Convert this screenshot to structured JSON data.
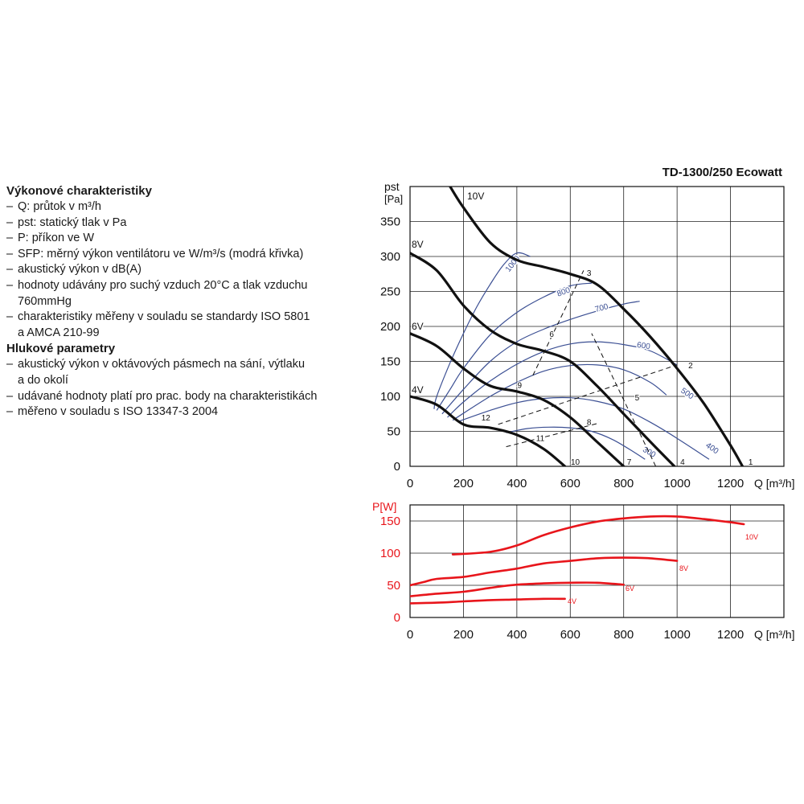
{
  "info": {
    "section1_title": "Výkonové charakteristiky",
    "section1_items": [
      [
        "Q: průtok v m³/h"
      ],
      [
        "pst: statický tlak v Pa"
      ],
      [
        "P: příkon ve W"
      ],
      [
        "SFP: měrný výkon ventilátoru ve W/m³/s (modrá křivka)"
      ],
      [
        "akustický výkon v dB(A)"
      ],
      [
        "hodnoty udávány pro suchý vzduch 20°C a tlak vzduchu",
        "760mmHg"
      ],
      [
        "charakteristiky měřeny v souladu se standardy ISO 5801",
        "a AMCA 210-99"
      ]
    ],
    "section2_title": "Hlukové parametry",
    "section2_items": [
      [
        "akustický výkon v oktávových pásmech na sání, výtlaku",
        "a do okolí"
      ],
      [
        "udávané hodnoty platí pro prac. body na charakteristikách"
      ],
      [
        "měřeno v souladu s ISO 13347-3 2004"
      ]
    ]
  },
  "chart_data": [
    {
      "type": "line",
      "title": "TD-1300/250 Ecowatt",
      "ylabel_main": "pst",
      "ylabel_unit": "[Pa]",
      "xlabel": "Q [m³/h]",
      "xlim": [
        0,
        1400
      ],
      "ylim": [
        0,
        400
      ],
      "xticks": [
        0,
        200,
        400,
        600,
        800,
        1000,
        1200
      ],
      "yticks": [
        0,
        50,
        100,
        150,
        200,
        250,
        300,
        350
      ],
      "grid": true,
      "series": [
        {
          "name": "10V",
          "points": [
            [
              150,
              400
            ],
            [
              200,
              370
            ],
            [
              300,
              320
            ],
            [
              400,
              295
            ],
            [
              500,
              285
            ],
            [
              600,
              275
            ],
            [
              700,
              260
            ],
            [
              800,
              225
            ],
            [
              900,
              185
            ],
            [
              1000,
              140
            ],
            [
              1100,
              90
            ],
            [
              1200,
              30
            ],
            [
              1245,
              0
            ]
          ]
        },
        {
          "name": "8V",
          "points": [
            [
              0,
              305
            ],
            [
              100,
              280
            ],
            [
              200,
              230
            ],
            [
              300,
              195
            ],
            [
              400,
              175
            ],
            [
              500,
              165
            ],
            [
              600,
              150
            ],
            [
              700,
              115
            ],
            [
              800,
              75
            ],
            [
              900,
              35
            ],
            [
              990,
              0
            ]
          ]
        },
        {
          "name": "6V",
          "points": [
            [
              0,
              190
            ],
            [
              100,
              172
            ],
            [
              200,
              140
            ],
            [
              300,
              115
            ],
            [
              400,
              107
            ],
            [
              500,
              95
            ],
            [
              600,
              70
            ],
            [
              700,
              35
            ],
            [
              800,
              0
            ]
          ]
        },
        {
          "name": "4V",
          "points": [
            [
              0,
              100
            ],
            [
              100,
              88
            ],
            [
              200,
              60
            ],
            [
              300,
              55
            ],
            [
              400,
              45
            ],
            [
              500,
              25
            ],
            [
              580,
              0
            ]
          ]
        }
      ],
      "sfp_curves": [
        {
          "label": "1000",
          "points": [
            [
              90,
              82
            ],
            [
              100,
              100
            ],
            [
              150,
              148
            ],
            [
              200,
              190
            ],
            [
              250,
              228
            ],
            [
              300,
              260
            ],
            [
              350,
              288
            ],
            [
              400,
              305
            ],
            [
              450,
              300
            ]
          ]
        },
        {
          "label": "800",
          "points": [
            [
              100,
              80
            ],
            [
              150,
              110
            ],
            [
              200,
              140
            ],
            [
              300,
              188
            ],
            [
              400,
              220
            ],
            [
              500,
              242
            ],
            [
              600,
              258
            ],
            [
              680,
              262
            ]
          ]
        },
        {
          "label": "700",
          "points": [
            [
              120,
              75
            ],
            [
              200,
              110
            ],
            [
              300,
              150
            ],
            [
              400,
              178
            ],
            [
              500,
              196
            ],
            [
              600,
              210
            ],
            [
              700,
              222
            ],
            [
              800,
              232
            ],
            [
              860,
              236
            ]
          ]
        },
        {
          "label": "600",
          "points": [
            [
              140,
              70
            ],
            [
              200,
              92
            ],
            [
              300,
              122
            ],
            [
              400,
              146
            ],
            [
              500,
              164
            ],
            [
              600,
              175
            ],
            [
              700,
              178
            ],
            [
              800,
              174
            ],
            [
              900,
              165
            ],
            [
              1000,
              145
            ]
          ]
        },
        {
          "label": "500",
          "points": [
            [
              160,
              66
            ],
            [
              300,
              100
            ],
            [
              400,
              120
            ],
            [
              500,
              136
            ],
            [
              600,
              144
            ],
            [
              700,
              145
            ],
            [
              800,
              138
            ],
            [
              900,
              120
            ],
            [
              960,
              102
            ]
          ]
        },
        {
          "label": "400",
          "points": [
            [
              180,
              64
            ],
            [
              300,
              80
            ],
            [
              400,
              91
            ],
            [
              500,
              97
            ],
            [
              600,
              98
            ],
            [
              700,
              93
            ],
            [
              800,
              82
            ],
            [
              900,
              63
            ],
            [
              1000,
              40
            ],
            [
              1120,
              10
            ]
          ]
        },
        {
          "label": "300",
          "points": [
            [
              360,
              48
            ],
            [
              440,
              54
            ],
            [
              520,
              56
            ],
            [
              600,
              55
            ],
            [
              680,
              50
            ],
            [
              760,
              38
            ],
            [
              840,
              20
            ],
            [
              880,
              10
            ]
          ]
        }
      ],
      "system_lines": [
        {
          "from": [
            460,
            130
          ],
          "to": [
            650,
            280
          ]
        },
        {
          "from": [
            330,
            60
          ],
          "to": [
            1000,
            145
          ]
        },
        {
          "from": [
            360,
            28
          ],
          "to": [
            710,
            62
          ]
        },
        {
          "from": [
            920,
            0
          ],
          "to": [
            680,
            190
          ]
        }
      ],
      "point_labels": [
        {
          "text": "1",
          "x": 1255,
          "y": 0
        },
        {
          "text": "2",
          "x": 1030,
          "y": 138
        },
        {
          "text": "3",
          "x": 650,
          "y": 270
        },
        {
          "text": "4",
          "x": 1000,
          "y": 0
        },
        {
          "text": "5",
          "x": 830,
          "y": 92
        },
        {
          "text": "6",
          "x": 510,
          "y": 183
        },
        {
          "text": "7",
          "x": 800,
          "y": 0
        },
        {
          "text": "8",
          "x": 650,
          "y": 57
        },
        {
          "text": "9",
          "x": 390,
          "y": 110
        },
        {
          "text": "10",
          "x": 590,
          "y": 0
        },
        {
          "text": "11",
          "x": 460,
          "y": 34
        },
        {
          "text": "12",
          "x": 255,
          "y": 63
        }
      ],
      "colors": {
        "curve": "#111111",
        "sfp": "#3b4f93",
        "grid": "#222222"
      }
    },
    {
      "type": "line",
      "ylabel": "P[W]",
      "xlabel": "Q [m³/h]",
      "xlim": [
        0,
        1400
      ],
      "ylim": [
        0,
        175
      ],
      "xticks": [
        0,
        200,
        400,
        600,
        800,
        1000,
        1200
      ],
      "yticks": [
        0,
        50,
        100,
        150
      ],
      "grid": true,
      "series": [
        {
          "name": "10V",
          "points": [
            [
              160,
              98
            ],
            [
              300,
              102
            ],
            [
              400,
              112
            ],
            [
              500,
              128
            ],
            [
              600,
              140
            ],
            [
              700,
              149
            ],
            [
              800,
              154
            ],
            [
              900,
              157
            ],
            [
              1000,
              157
            ],
            [
              1100,
              153
            ],
            [
              1200,
              148
            ],
            [
              1250,
              145
            ]
          ]
        },
        {
          "name": "8V",
          "points": [
            [
              0,
              50
            ],
            [
              50,
              55
            ],
            [
              100,
              60
            ],
            [
              200,
              63
            ],
            [
              300,
              70
            ],
            [
              400,
              76
            ],
            [
              500,
              84
            ],
            [
              600,
              88
            ],
            [
              700,
              92
            ],
            [
              800,
              93
            ],
            [
              900,
              92
            ],
            [
              1000,
              88
            ]
          ]
        },
        {
          "name": "6V",
          "points": [
            [
              0,
              33
            ],
            [
              100,
              37
            ],
            [
              200,
              40
            ],
            [
              300,
              46
            ],
            [
              400,
              51
            ],
            [
              500,
              53
            ],
            [
              600,
              54
            ],
            [
              700,
              54
            ],
            [
              800,
              51
            ]
          ]
        },
        {
          "name": "4V",
          "points": [
            [
              0,
              22
            ],
            [
              100,
              23
            ],
            [
              200,
              25
            ],
            [
              300,
              27
            ],
            [
              400,
              28
            ],
            [
              500,
              29
            ],
            [
              580,
              29
            ]
          ]
        }
      ],
      "colors": {
        "curve": "#e8151b",
        "label": "#e8151b",
        "grid": "#222222"
      }
    }
  ]
}
